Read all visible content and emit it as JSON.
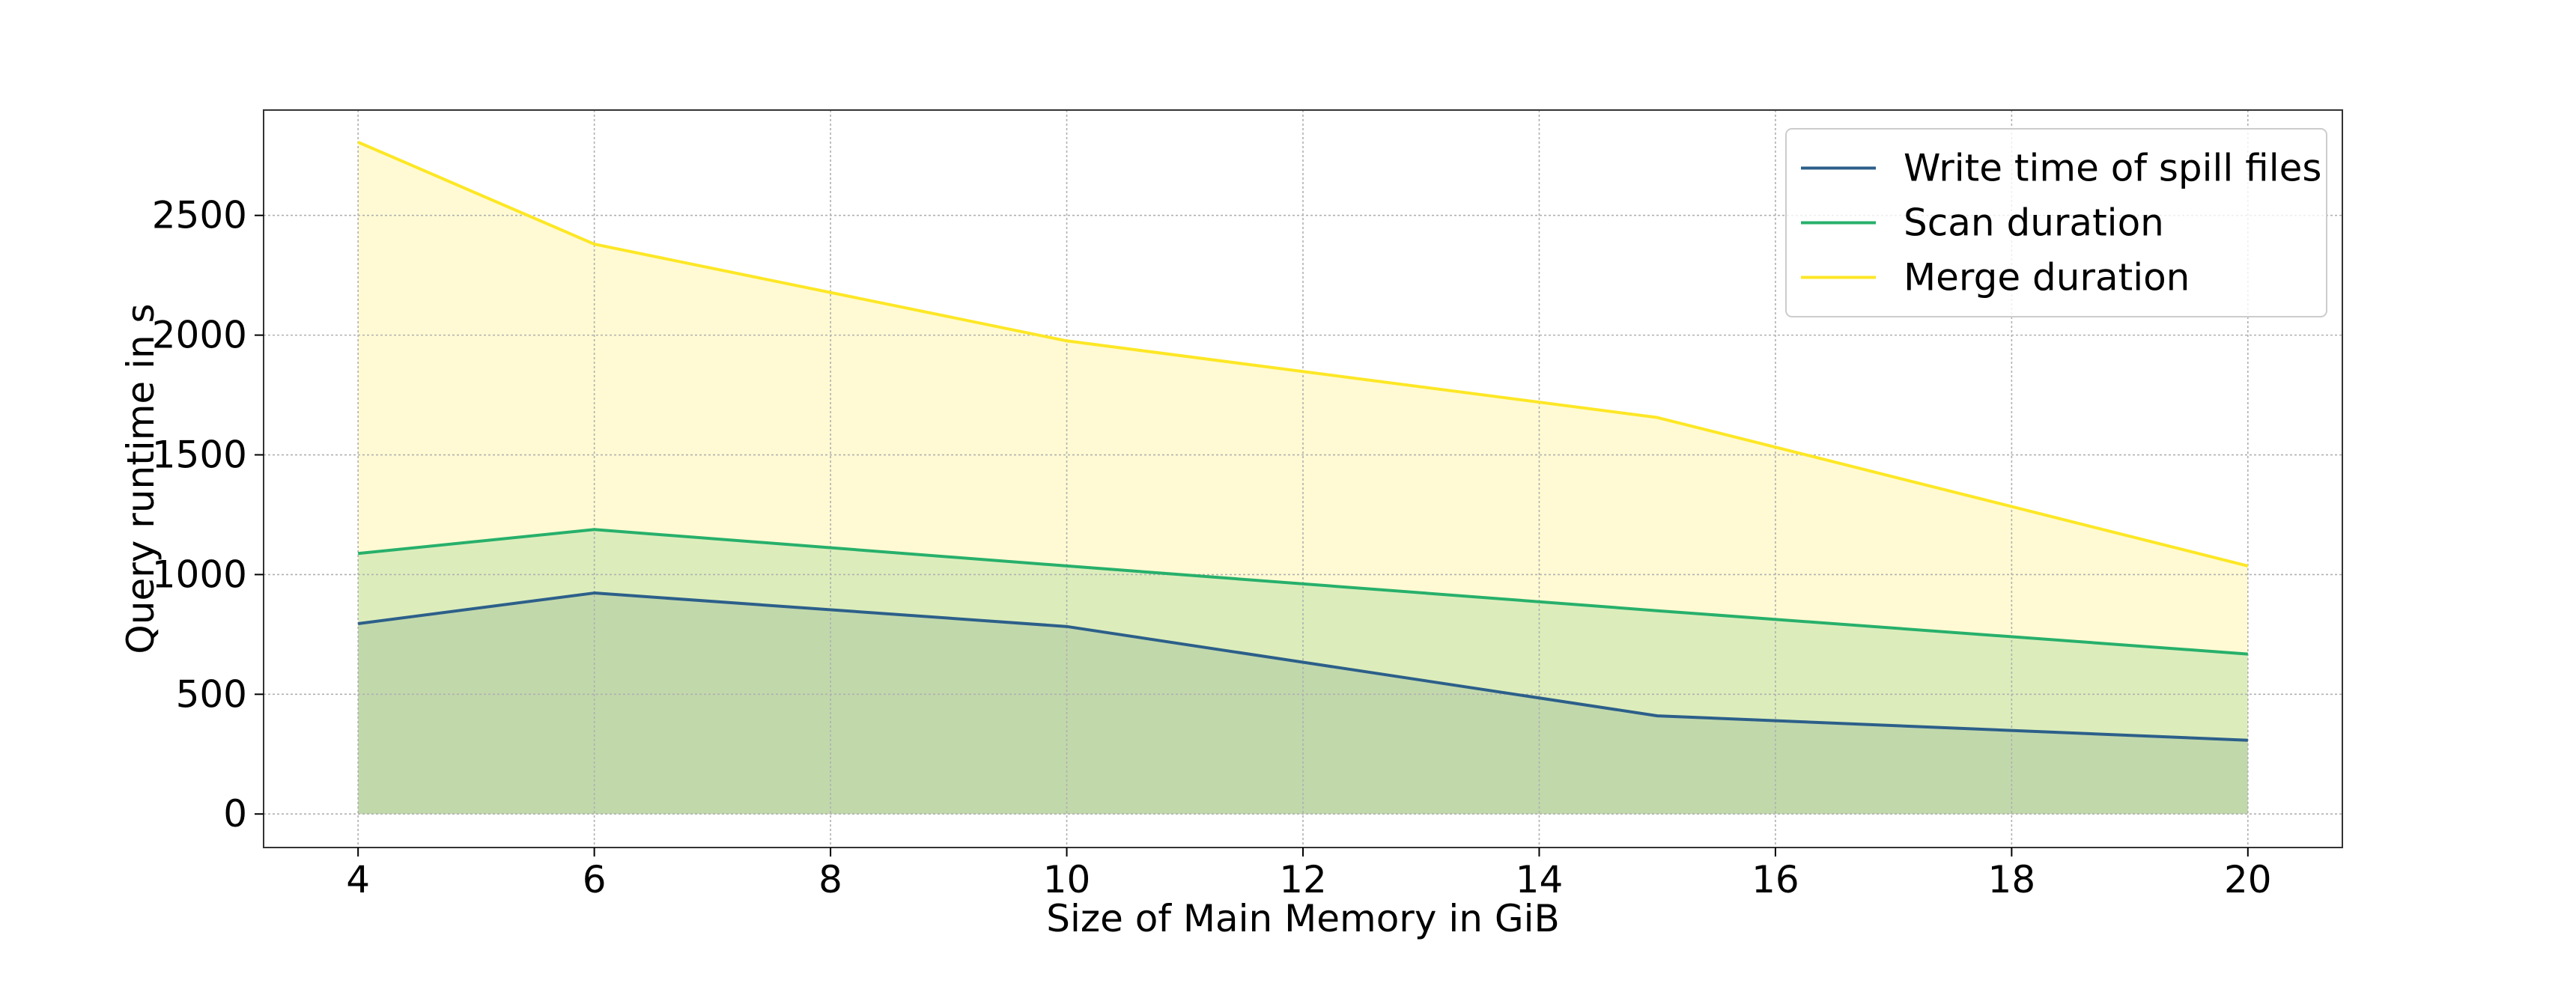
{
  "chart_data": {
    "type": "area",
    "title": "",
    "xlabel": "Size of Main Memory in GiB",
    "ylabel": "Query runtime in s",
    "x": [
      4,
      6,
      10,
      15,
      20
    ],
    "series": [
      {
        "name": "Write time of spill files",
        "values": [
          795,
          923,
          783,
          410,
          308
        ],
        "color": "#2c5f8a"
      },
      {
        "name": "Scan duration",
        "values": [
          1088,
          1188,
          1036,
          849,
          668
        ],
        "color": "#27b06b"
      },
      {
        "name": "Merge duration",
        "values": [
          2806,
          2380,
          1976,
          1656,
          1036
        ],
        "color": "#fde725"
      }
    ],
    "xlim": [
      3.2,
      20.8
    ],
    "ylim": [
      -140,
      2940
    ],
    "xticks": [
      4,
      6,
      8,
      10,
      12,
      14,
      16,
      18,
      20
    ],
    "yticks": [
      0,
      500,
      1000,
      1500,
      2000,
      2500
    ],
    "xtick_labels": [
      "4",
      "6",
      "8",
      "10",
      "12",
      "14",
      "16",
      "18",
      "20"
    ],
    "ytick_labels": [
      "0",
      "500",
      "1000",
      "1500",
      "2000",
      "2500"
    ],
    "grid": true,
    "legend_position": "top-right"
  }
}
